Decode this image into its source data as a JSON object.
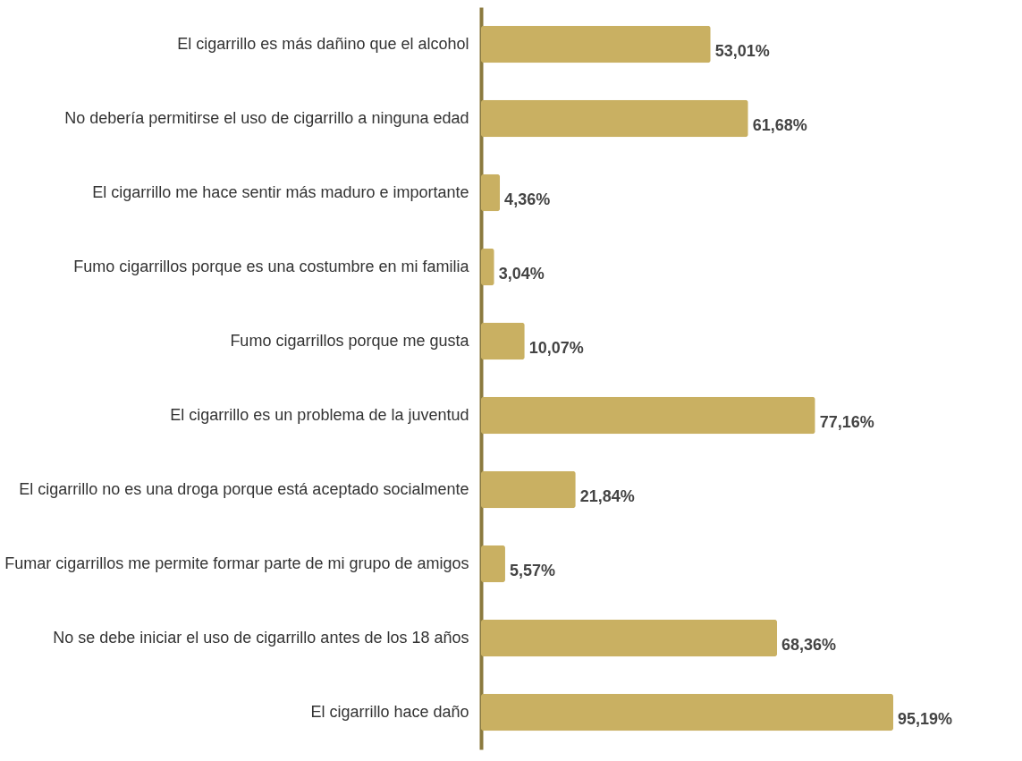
{
  "chart_data": {
    "type": "bar",
    "orientation": "horizontal",
    "categories": [
      "El cigarrillo es más dañino que el alcohol",
      "No debería permitirse el uso de cigarrillo a ninguna edad",
      "El cigarrillo me hace sentir más maduro e importante",
      "Fumo cigarrillos porque es una costumbre en mi familia",
      "Fumo cigarrillos porque me gusta",
      "El cigarrillo es un problema de la juventud",
      "El cigarrillo no es una droga porque está aceptado socialmente",
      "Fumar cigarrillos me permite formar parte de mi grupo de amigos",
      "No se debe iniciar el uso de cigarrillo antes de los 18 años",
      "El cigarrillo hace daño"
    ],
    "values": [
      53.01,
      61.68,
      4.36,
      3.04,
      10.07,
      77.16,
      21.84,
      5.57,
      68.36,
      95.19
    ],
    "value_labels": [
      "53,01%",
      "61,68%",
      "4,36%",
      "3,04%",
      "10,07%",
      "77,16%",
      "21,84%",
      "5,57%",
      "68,36%",
      "95,19%"
    ],
    "color": "#c9b062"
  }
}
